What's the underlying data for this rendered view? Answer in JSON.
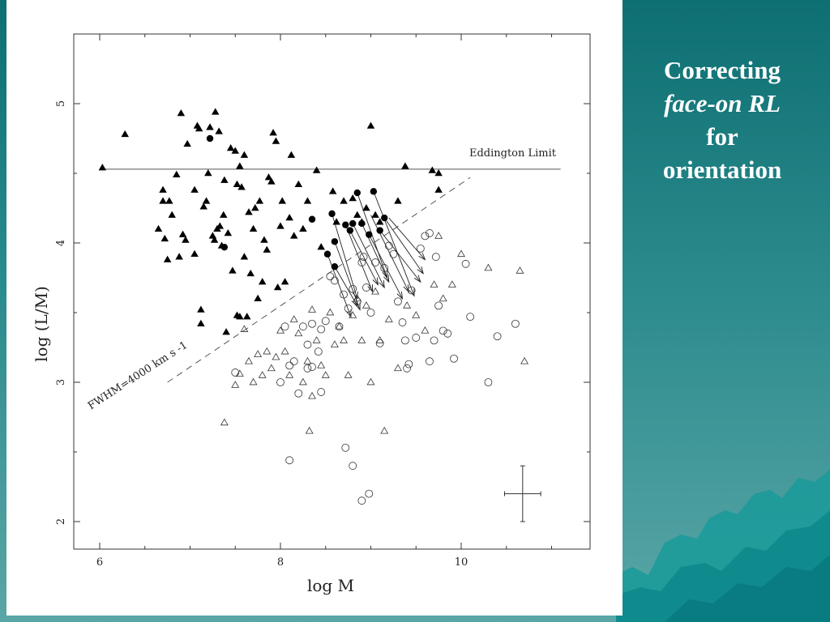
{
  "slide": {
    "title_line1": "Correcting",
    "title_line2": "face-on RL",
    "title_line3": "for",
    "title_line4": "orientation"
  },
  "chart_data": {
    "type": "scatter",
    "xlabel": "log M",
    "ylabel": "log (L/M)",
    "xlim": [
      5.9,
      11.5
    ],
    "ylim": [
      1.8,
      5.5
    ],
    "x_ticks": [
      6,
      8,
      10
    ],
    "y_ticks": [
      2,
      3,
      4,
      5
    ],
    "grid": false,
    "eddington": {
      "label": "Eddington Limit",
      "y": 4.53,
      "x_start": 6.0,
      "x_end": 11.1
    },
    "fwhm_line": {
      "label": "FWHM=4000 km s -1",
      "x": [
        6.75,
        10.1
      ],
      "y": [
        3.0,
        4.47
      ]
    },
    "error_bar": {
      "x": 10.68,
      "y": 2.2,
      "dx": 0.2,
      "dy": 0.2
    },
    "series": [
      {
        "marker": "filled-triangle",
        "points": [
          [
            6.03,
            4.54
          ],
          [
            6.28,
            4.78
          ],
          [
            6.65,
            4.1
          ],
          [
            6.7,
            4.38
          ],
          [
            6.7,
            4.3
          ],
          [
            6.72,
            4.03
          ],
          [
            6.75,
            3.88
          ],
          [
            6.77,
            4.3
          ],
          [
            6.8,
            4.2
          ],
          [
            6.85,
            4.49
          ],
          [
            6.9,
            4.93
          ],
          [
            6.88,
            3.9
          ],
          [
            6.92,
            4.06
          ],
          [
            6.95,
            4.02
          ],
          [
            6.97,
            4.71
          ],
          [
            7.05,
            4.38
          ],
          [
            7.05,
            3.92
          ],
          [
            7.08,
            4.84
          ],
          [
            7.1,
            4.82
          ],
          [
            7.12,
            3.52
          ],
          [
            7.12,
            3.42
          ],
          [
            7.15,
            4.26
          ],
          [
            7.18,
            4.3
          ],
          [
            7.2,
            4.5
          ],
          [
            7.22,
            4.83
          ],
          [
            7.25,
            4.05
          ],
          [
            7.27,
            4.02
          ],
          [
            7.28,
            4.94
          ],
          [
            7.3,
            4.1
          ],
          [
            7.32,
            4.8
          ],
          [
            7.33,
            4.12
          ],
          [
            7.35,
            3.98
          ],
          [
            7.37,
            4.2
          ],
          [
            7.38,
            4.45
          ],
          [
            7.4,
            3.36
          ],
          [
            7.42,
            4.07
          ],
          [
            7.45,
            4.68
          ],
          [
            7.47,
            3.8
          ],
          [
            7.5,
            4.66
          ],
          [
            7.52,
            4.42
          ],
          [
            7.52,
            3.48
          ],
          [
            7.55,
            4.55
          ],
          [
            7.55,
            3.47
          ],
          [
            7.57,
            4.4
          ],
          [
            7.6,
            4.63
          ],
          [
            7.6,
            3.9
          ],
          [
            7.63,
            3.47
          ],
          [
            7.65,
            4.22
          ],
          [
            7.67,
            3.78
          ],
          [
            7.7,
            4.1
          ],
          [
            7.72,
            4.25
          ],
          [
            7.75,
            3.6
          ],
          [
            7.77,
            4.3
          ],
          [
            7.8,
            3.72
          ],
          [
            7.82,
            4.02
          ],
          [
            7.85,
            3.95
          ],
          [
            7.87,
            4.47
          ],
          [
            7.9,
            4.44
          ],
          [
            7.92,
            4.79
          ],
          [
            7.95,
            4.73
          ],
          [
            7.97,
            3.68
          ],
          [
            8.0,
            4.12
          ],
          [
            8.02,
            4.3
          ],
          [
            8.05,
            3.72
          ],
          [
            8.1,
            4.18
          ],
          [
            8.12,
            4.63
          ],
          [
            8.15,
            4.05
          ],
          [
            8.2,
            4.42
          ],
          [
            8.25,
            4.1
          ],
          [
            8.3,
            4.3
          ],
          [
            8.4,
            4.52
          ],
          [
            8.45,
            3.97
          ],
          [
            8.58,
            4.37
          ],
          [
            8.62,
            4.15
          ],
          [
            8.7,
            4.3
          ],
          [
            8.8,
            4.32
          ],
          [
            8.85,
            4.2
          ],
          [
            8.9,
            4.15
          ],
          [
            8.95,
            4.25
          ],
          [
            9.0,
            4.84
          ],
          [
            9.05,
            4.2
          ],
          [
            9.1,
            4.15
          ],
          [
            9.3,
            4.3
          ],
          [
            9.38,
            4.55
          ],
          [
            9.68,
            4.52
          ],
          [
            9.75,
            4.5
          ],
          [
            9.75,
            4.38
          ]
        ]
      },
      {
        "marker": "filled-circle",
        "points": [
          [
            7.22,
            4.75
          ],
          [
            7.38,
            3.97
          ],
          [
            8.35,
            4.17
          ],
          [
            8.52,
            3.92
          ],
          [
            8.57,
            4.21
          ],
          [
            8.6,
            4.01
          ],
          [
            8.6,
            3.83
          ],
          [
            8.72,
            4.13
          ],
          [
            8.77,
            4.09
          ],
          [
            8.8,
            4.14
          ],
          [
            8.85,
            4.36
          ],
          [
            8.9,
            4.14
          ],
          [
            8.98,
            4.06
          ],
          [
            9.03,
            4.37
          ],
          [
            9.1,
            4.09
          ],
          [
            9.15,
            4.18
          ]
        ]
      },
      {
        "marker": "open-circle",
        "points": [
          [
            7.5,
            3.07
          ],
          [
            8.0,
            3.0
          ],
          [
            8.05,
            3.4
          ],
          [
            8.1,
            3.12
          ],
          [
            8.15,
            3.15
          ],
          [
            8.2,
            2.92
          ],
          [
            8.25,
            3.4
          ],
          [
            8.3,
            3.27
          ],
          [
            8.35,
            3.11
          ],
          [
            8.35,
            3.42
          ],
          [
            8.42,
            3.22
          ],
          [
            8.45,
            3.38
          ],
          [
            8.5,
            3.44
          ],
          [
            8.55,
            3.76
          ],
          [
            8.6,
            3.73
          ],
          [
            8.65,
            3.4
          ],
          [
            8.7,
            3.63
          ],
          [
            8.75,
            3.53
          ],
          [
            8.8,
            3.67
          ],
          [
            8.85,
            3.58
          ],
          [
            8.9,
            3.86
          ],
          [
            8.92,
            3.9
          ],
          [
            8.95,
            3.68
          ],
          [
            9.0,
            3.5
          ],
          [
            9.05,
            3.86
          ],
          [
            9.1,
            3.28
          ],
          [
            9.15,
            3.82
          ],
          [
            9.2,
            3.98
          ],
          [
            9.25,
            3.92
          ],
          [
            9.3,
            3.58
          ],
          [
            9.35,
            3.43
          ],
          [
            9.38,
            3.3
          ],
          [
            9.4,
            3.1
          ],
          [
            9.42,
            3.13
          ],
          [
            9.45,
            3.66
          ],
          [
            9.5,
            3.32
          ],
          [
            9.55,
            3.96
          ],
          [
            9.6,
            4.05
          ],
          [
            9.65,
            4.07
          ],
          [
            9.65,
            3.15
          ],
          [
            9.7,
            3.3
          ],
          [
            9.72,
            3.9
          ],
          [
            9.75,
            3.55
          ],
          [
            9.8,
            3.37
          ],
          [
            9.85,
            3.35
          ],
          [
            9.92,
            3.17
          ],
          [
            10.05,
            3.85
          ],
          [
            10.1,
            3.47
          ],
          [
            10.3,
            3.0
          ],
          [
            10.4,
            3.33
          ],
          [
            10.6,
            3.42
          ],
          [
            8.1,
            2.44
          ],
          [
            8.3,
            3.1
          ],
          [
            8.72,
            2.53
          ],
          [
            8.8,
            2.4
          ],
          [
            8.9,
            2.15
          ],
          [
            8.98,
            2.2
          ],
          [
            8.45,
            2.93
          ]
        ]
      },
      {
        "marker": "open-triangle",
        "points": [
          [
            7.38,
            2.71
          ],
          [
            7.5,
            2.98
          ],
          [
            7.55,
            3.06
          ],
          [
            7.6,
            3.38
          ],
          [
            7.65,
            3.15
          ],
          [
            7.7,
            3.0
          ],
          [
            7.75,
            3.2
          ],
          [
            7.8,
            3.05
          ],
          [
            7.85,
            3.22
          ],
          [
            7.9,
            3.1
          ],
          [
            7.95,
            3.18
          ],
          [
            8.0,
            3.37
          ],
          [
            8.05,
            3.22
          ],
          [
            8.1,
            3.05
          ],
          [
            8.15,
            3.45
          ],
          [
            8.2,
            3.35
          ],
          [
            8.25,
            3.0
          ],
          [
            8.3,
            3.15
          ],
          [
            8.35,
            3.52
          ],
          [
            8.4,
            3.3
          ],
          [
            8.45,
            3.12
          ],
          [
            8.5,
            3.05
          ],
          [
            8.55,
            3.5
          ],
          [
            8.6,
            3.27
          ],
          [
            8.65,
            3.4
          ],
          [
            8.7,
            3.3
          ],
          [
            8.75,
            3.05
          ],
          [
            8.8,
            3.48
          ],
          [
            8.85,
            3.6
          ],
          [
            8.9,
            3.3
          ],
          [
            8.95,
            3.55
          ],
          [
            9.0,
            3.0
          ],
          [
            9.05,
            3.65
          ],
          [
            9.1,
            3.3
          ],
          [
            9.2,
            3.45
          ],
          [
            9.3,
            3.1
          ],
          [
            9.4,
            3.55
          ],
          [
            9.5,
            3.48
          ],
          [
            9.6,
            3.37
          ],
          [
            9.7,
            3.7
          ],
          [
            9.8,
            3.6
          ],
          [
            9.9,
            3.7
          ],
          [
            10.0,
            3.92
          ],
          [
            10.3,
            3.82
          ],
          [
            10.65,
            3.8
          ],
          [
            10.7,
            3.15
          ],
          [
            9.15,
            2.65
          ],
          [
            8.32,
            2.65
          ],
          [
            8.35,
            2.9
          ],
          [
            9.75,
            4.05
          ]
        ]
      }
    ],
    "arrows": [
      [
        [
          8.52,
          3.92
        ],
        [
          8.78,
          3.47
        ]
      ],
      [
        [
          8.57,
          4.21
        ],
        [
          8.85,
          3.6
        ]
      ],
      [
        [
          8.6,
          4.01
        ],
        [
          8.88,
          3.52
        ]
      ],
      [
        [
          8.6,
          3.83
        ],
        [
          8.85,
          3.55
        ]
      ],
      [
        [
          8.72,
          4.13
        ],
        [
          9.02,
          3.65
        ]
      ],
      [
        [
          8.77,
          4.09
        ],
        [
          9.08,
          3.7
        ]
      ],
      [
        [
          8.8,
          4.14
        ],
        [
          9.15,
          3.68
        ]
      ],
      [
        [
          8.85,
          4.36
        ],
        [
          9.18,
          3.75
        ]
      ],
      [
        [
          8.9,
          4.14
        ],
        [
          9.2,
          3.72
        ]
      ],
      [
        [
          8.98,
          4.06
        ],
        [
          9.35,
          3.6
        ]
      ],
      [
        [
          9.03,
          4.37
        ],
        [
          9.48,
          3.62
        ]
      ],
      [
        [
          9.1,
          4.09
        ],
        [
          9.55,
          3.72
        ]
      ],
      [
        [
          9.15,
          4.18
        ],
        [
          9.58,
          3.78
        ]
      ],
      [
        [
          9.0,
          4.2
        ],
        [
          9.42,
          3.65
        ]
      ],
      [
        [
          9.2,
          4.18
        ],
        [
          9.6,
          3.88
        ]
      ]
    ]
  }
}
